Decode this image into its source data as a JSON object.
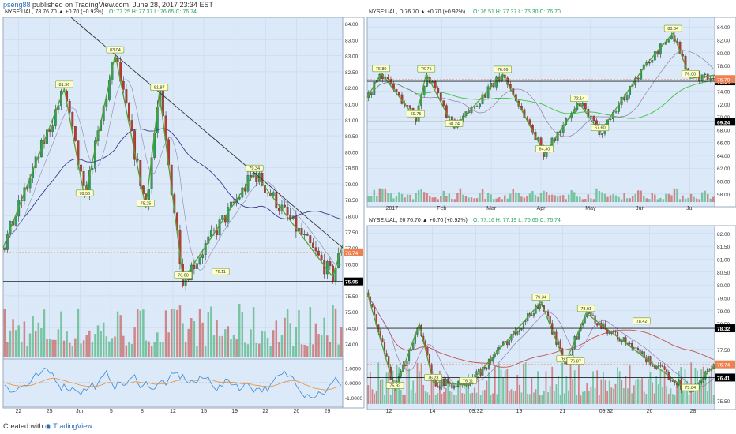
{
  "header": {
    "user": "pseng88",
    "text": " published on TradingView.com, June 28, 2017 23:34 EST"
  },
  "footer": {
    "created": "Created with",
    "brand": "TradingView"
  },
  "colors": {
    "panel_bg": "#dce9f8",
    "up": "#26a65b",
    "down": "#c0392b",
    "pattern": "#5a9e32",
    "trend": "#333333",
    "ma_long": "#3a3a8a",
    "ma_red": "#c85050",
    "ema": "#3cc43c",
    "price_tag": "#f08050",
    "level_tag": "#000000"
  },
  "chart_data": [
    {
      "type": "candlestick",
      "panel": "left",
      "title": "NYSE:UAL, 78  76.70 ▲ +0.70 (+0.92%)",
      "ohlc": {
        "o": "O: 77.25",
        "h": "H: 77.37",
        "l": "L: 76.65",
        "c": "C: 76.74"
      },
      "x_ticks": [
        "22",
        "25",
        "Jun",
        "5",
        "8",
        "12",
        "15",
        "19",
        "22",
        "26",
        "29"
      ],
      "y_ticks": [
        84.0,
        83.5,
        83.0,
        82.5,
        82.0,
        81.5,
        81.0,
        80.5,
        80.0,
        79.5,
        79.0,
        78.5,
        78.0,
        77.5,
        77.0,
        76.5,
        75.5,
        75.0,
        74.5,
        74.0
      ],
      "ylim": [
        73.6,
        84.2
      ],
      "price_tag": "76.74",
      "level_tag": "75.95",
      "level": 75.95,
      "pattern_labels": [
        {
          "t": "81.96",
          "x": 18,
          "y": 81.96
        },
        {
          "t": "83.04",
          "x": 33,
          "y": 83.04
        },
        {
          "t": "81.87",
          "x": 46,
          "y": 81.87
        },
        {
          "t": "78.56",
          "x": 24,
          "y": 78.56
        },
        {
          "t": "78.25",
          "x": 42,
          "y": 78.25
        },
        {
          "t": "76.00",
          "x": 53,
          "y": 76.0
        },
        {
          "t": "79.34",
          "x": 74,
          "y": 79.34
        },
        {
          "t": "76.11",
          "x": 64,
          "y": 76.11
        }
      ],
      "pattern": [
        [
          0,
          77.0
        ],
        [
          18,
          81.96
        ],
        [
          24,
          78.56
        ],
        [
          33,
          83.04
        ],
        [
          42,
          78.25
        ],
        [
          46,
          81.87
        ],
        [
          53,
          76.0
        ],
        [
          74,
          79.34
        ],
        [
          97,
          76.1
        ],
        [
          100,
          77.1
        ]
      ],
      "trendline": [
        [
          20,
          84.2
        ],
        [
          100,
          77.0
        ]
      ],
      "oscillator": {
        "ticks": [
          "1.0000",
          "0.0000",
          "-1.0000"
        ],
        "ylim": [
          -1.6,
          1.6
        ]
      }
    },
    {
      "type": "candlestick",
      "panel": "top-right",
      "title": "NYSE:UAL, D  76.70 ▲ +0.70 (+0.92%)",
      "ohlc": {
        "o": "O: 76.51",
        "h": "H: 77.37",
        "l": "L: 76.30",
        "c": "C: 76.70"
      },
      "x_ticks": [
        "2017",
        "Feb",
        "Mar",
        "Apr",
        "May",
        "Jun",
        "Jul"
      ],
      "y_ticks": [
        84.0,
        82.0,
        80.0,
        78.0,
        74.0,
        72.0,
        70.0,
        68.0,
        66.0,
        64.0,
        62.0,
        60.0,
        58.0
      ],
      "ylim": [
        56.5,
        85.5
      ],
      "price_tag": "76.70",
      "level_tags": [
        "75.54",
        "69.24"
      ],
      "levels": [
        75.54,
        69.24
      ],
      "pattern_labels": [
        {
          "t": "76.80",
          "x": 4,
          "y": 76.8
        },
        {
          "t": "76.75",
          "x": 17,
          "y": 76.75
        },
        {
          "t": "76.66",
          "x": 39,
          "y": 76.66
        },
        {
          "t": "69.75",
          "x": 14,
          "y": 69.75
        },
        {
          "t": "68.24",
          "x": 25,
          "y": 68.24
        },
        {
          "t": "64.30",
          "x": 51,
          "y": 64.3
        },
        {
          "t": "72.14",
          "x": 61,
          "y": 72.14
        },
        {
          "t": "67.60",
          "x": 67,
          "y": 67.6
        },
        {
          "t": "83.04",
          "x": 88,
          "y": 83.04
        },
        {
          "t": "76.00",
          "x": 93,
          "y": 76.0
        }
      ],
      "pattern": [
        [
          0,
          73.0
        ],
        [
          4,
          76.8
        ],
        [
          14,
          69.75
        ],
        [
          17,
          76.75
        ],
        [
          25,
          68.24
        ],
        [
          39,
          76.66
        ],
        [
          51,
          64.3
        ],
        [
          61,
          72.14
        ],
        [
          67,
          67.6
        ],
        [
          80,
          78.0
        ],
        [
          88,
          83.04
        ],
        [
          93,
          76.0
        ],
        [
          100,
          76.5
        ]
      ]
    },
    {
      "type": "candlestick",
      "panel": "bottom-right",
      "title": "NYSE:UAL, 26  76.70 ▲ +0.70 (+0.92%)",
      "ohlc": {
        "o": "O: 77.16",
        "h": "H: 77.19",
        "l": "L: 76.65",
        "c": "C: 76.74"
      },
      "x_ticks": [
        "12",
        "14",
        "09:32",
        "19",
        "21",
        "09:32",
        "26",
        "28"
      ],
      "y_ticks": [
        82.0,
        81.5,
        81.0,
        80.5,
        80.0,
        79.5,
        79.0,
        78.5,
        77.5,
        77.0,
        75.5
      ],
      "ylim": [
        75.2,
        82.3
      ],
      "price_tag": "76.74",
      "level_tags": [
        "78.32",
        "76.41"
      ],
      "levels": [
        78.32,
        76.41
      ],
      "pattern_labels": [
        {
          "t": "75.92",
          "x": 8,
          "y": 75.92
        },
        {
          "t": "76.23",
          "x": 19,
          "y": 76.23
        },
        {
          "t": "76.11",
          "x": 29,
          "y": 76.11
        },
        {
          "t": "79.34",
          "x": 50,
          "y": 79.34
        },
        {
          "t": "76.96",
          "x": 57,
          "y": 76.96
        },
        {
          "t": "78.91",
          "x": 63,
          "y": 78.91
        },
        {
          "t": "76.87",
          "x": 60,
          "y": 76.87
        },
        {
          "t": "78.42",
          "x": 79,
          "y": 78.42
        },
        {
          "t": "75.84",
          "x": 93,
          "y": 75.84
        }
      ],
      "pattern": [
        [
          0,
          79.7
        ],
        [
          8,
          75.92
        ],
        [
          15,
          78.5
        ],
        [
          19,
          76.23
        ],
        [
          29,
          76.11
        ],
        [
          50,
          79.34
        ],
        [
          57,
          76.96
        ],
        [
          63,
          78.91
        ],
        [
          93,
          75.84
        ],
        [
          100,
          76.9
        ]
      ]
    }
  ]
}
